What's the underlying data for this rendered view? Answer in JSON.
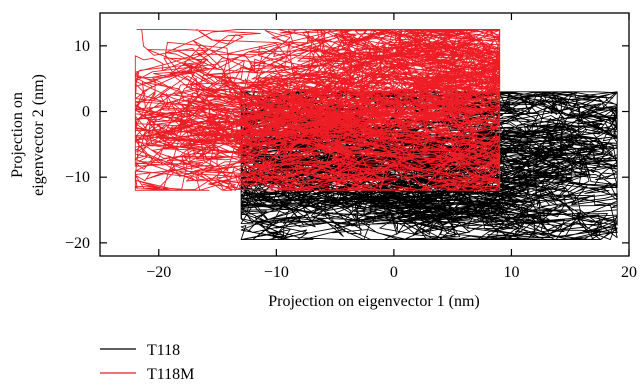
{
  "chart_data": {
    "type": "line",
    "xlabel": "Projection on eigenvector 1 (nm)",
    "ylabel_line1": "Projection on",
    "ylabel_line2": "eigenvector 2 (nm)",
    "xlim": [
      -25,
      20
    ],
    "ylim": [
      -22,
      15
    ],
    "xticks": [
      -20,
      -10,
      0,
      10,
      20
    ],
    "xtick_labels": [
      "−20",
      "−10",
      "0",
      "10",
      "20"
    ],
    "yticks": [
      -20,
      -10,
      0,
      10
    ],
    "ytick_labels": [
      "−20",
      "−10",
      "0",
      "10"
    ],
    "grid": false,
    "legend_position": "below-left",
    "series": [
      {
        "name": "T118",
        "color": "#000000",
        "region": {
          "x": [
            -13,
            19
          ],
          "y": [
            -19.5,
            3
          ],
          "center": [
            4,
            -8
          ],
          "spread": [
            13,
            8
          ]
        }
      },
      {
        "name": "T118M",
        "color": "#ee1c25",
        "region": {
          "x": [
            -22,
            9
          ],
          "y": [
            -12,
            12.5
          ],
          "center": [
            -4,
            0
          ],
          "spread": [
            12,
            9
          ]
        }
      }
    ]
  }
}
